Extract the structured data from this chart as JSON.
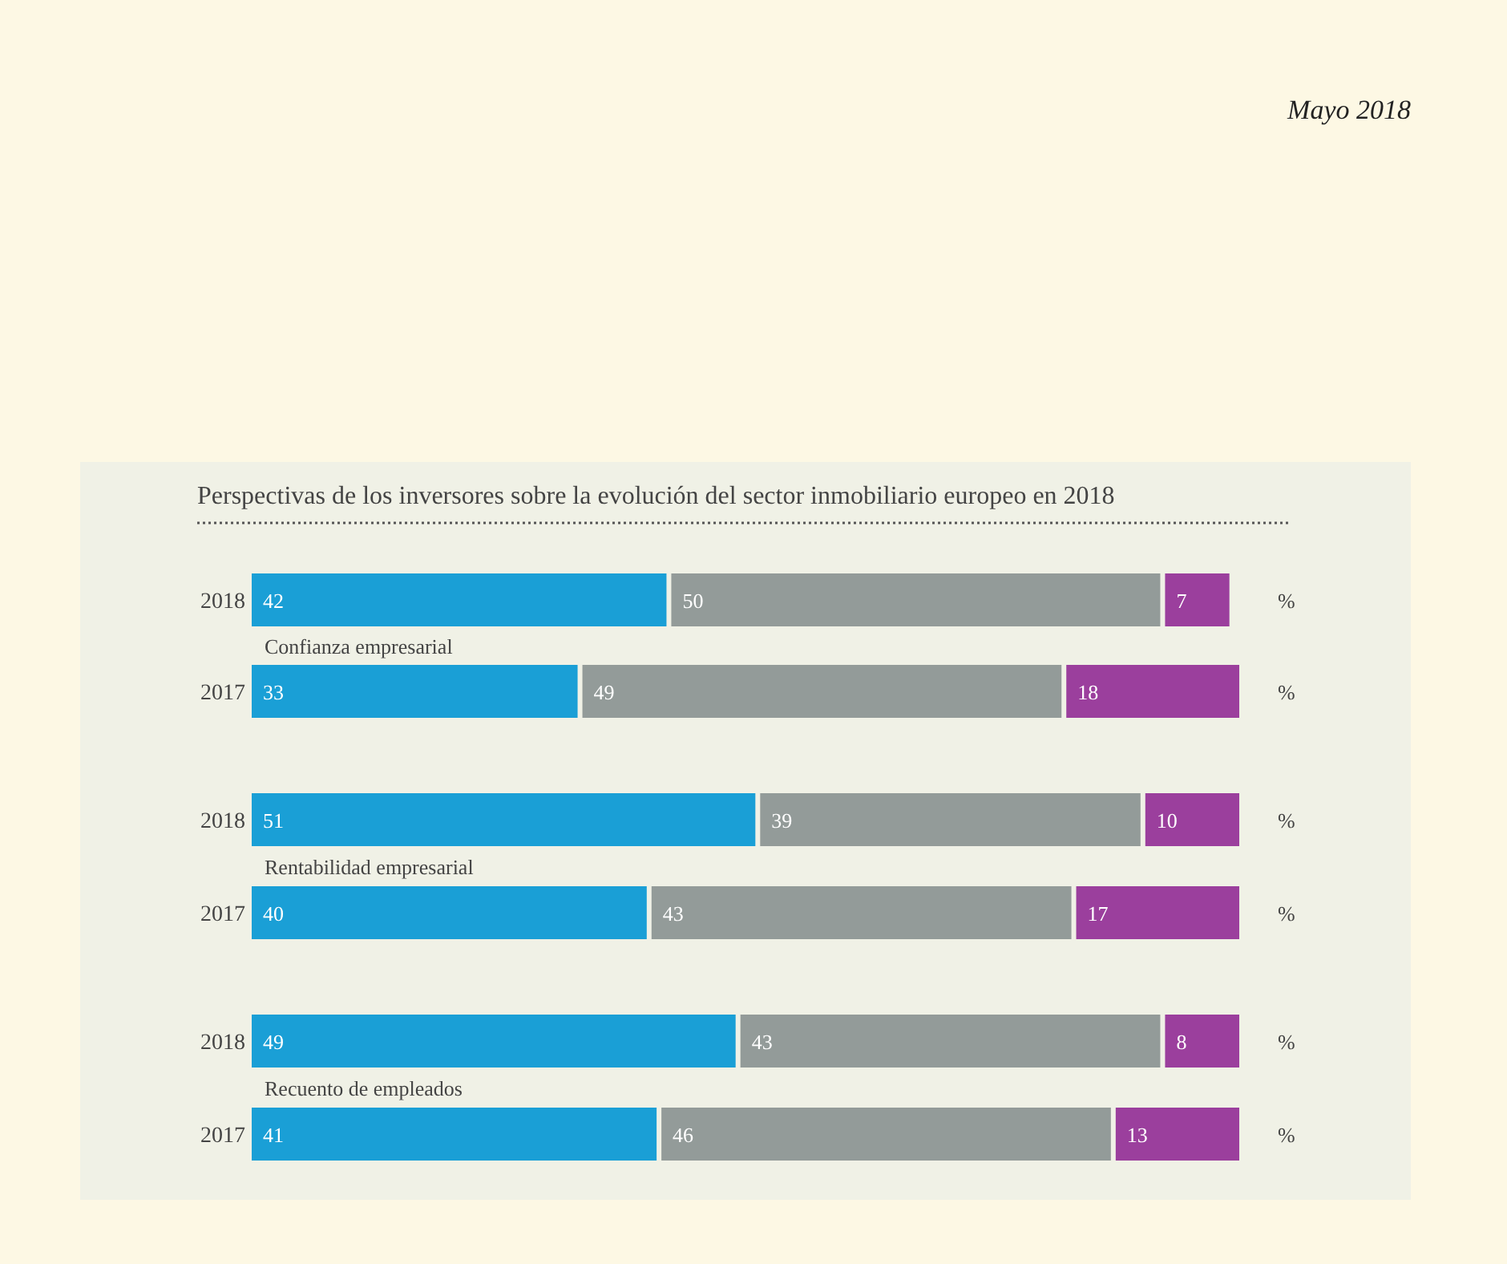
{
  "chart_data": {
    "type": "bar",
    "orientation": "horizontal",
    "stacked": true,
    "data_labels": true,
    "title": "Perspectivas de los inversores sobre la evolución del sector inmobiliario europeo en 2018",
    "xlabel": "%",
    "categories": [
      "2018",
      "2017",
      "2018",
      "2017",
      "2018",
      "2017"
    ],
    "series": [
      {
        "color": "#1a9fd6",
        "values": [
          42,
          33,
          51,
          40,
          49,
          41
        ]
      },
      {
        "color": "#939b99",
        "values": [
          50,
          49,
          39,
          43,
          43,
          46
        ]
      },
      {
        "color": "#9b3f9d",
        "values": [
          7,
          18,
          10,
          17,
          8,
          13
        ]
      }
    ],
    "annotations": [
      "Mayo 2018",
      "Confianza empresarial",
      "Rentabilidad empresarial",
      "Recuento de empleados"
    ]
  }
}
